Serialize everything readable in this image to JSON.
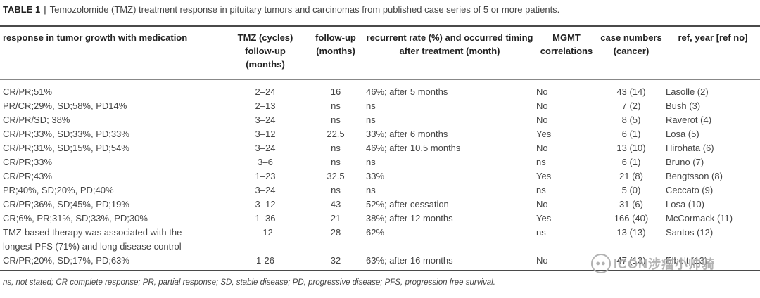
{
  "caption": {
    "label": "TABLE 1",
    "separator": "|",
    "text": "Temozolomide (TMZ) treatment response in pituitary tumors and carcinomas from published case series of 5 or more patients."
  },
  "headers": {
    "response": "response in tumor growth with medication",
    "tmz": "TMZ (cycles) follow-up (months)",
    "followup": "follow-up (months)",
    "recurrent": "recurrent rate (%) and occurred timing after treatment (month)",
    "mgmt": "MGMT correlations",
    "cases": "case numbers (cancer)",
    "ref": "ref, year [ref no]"
  },
  "rows": [
    {
      "response": "CR/PR;51%",
      "tmz": "2–24",
      "followup": "16",
      "recurrent": "46%; after 5 months",
      "mgmt": "No",
      "cases": "43 (14)",
      "ref": "Lasolle (2)"
    },
    {
      "response": "PR/CR;29%, SD;58%, PD14%",
      "tmz": "2–13",
      "followup": "ns",
      "recurrent": "ns",
      "mgmt": "No",
      "cases": "7 (2)",
      "ref": "Bush (3)"
    },
    {
      "response": "CR/PR/SD; 38%",
      "tmz": "3–24",
      "followup": "ns",
      "recurrent": "ns",
      "mgmt": "No",
      "cases": "8 (5)",
      "ref": "Raverot (4)"
    },
    {
      "response": "CR/PR;33%, SD;33%, PD;33%",
      "tmz": "3–12",
      "followup": "22.5",
      "recurrent": "33%; after 6 months",
      "mgmt": "Yes",
      "cases": "6 (1)",
      "ref": "Losa (5)"
    },
    {
      "response": "CR/PR;31%, SD;15%, PD;54%",
      "tmz": "3–24",
      "followup": "ns",
      "recurrent": "46%; after 10.5 months",
      "mgmt": "No",
      "cases": "13 (10)",
      "ref": "Hirohata (6)"
    },
    {
      "response": "CR/PR;33%",
      "tmz": "3–6",
      "followup": "ns",
      "recurrent": "ns",
      "mgmt": "ns",
      "cases": "6 (1)",
      "ref": "Bruno (7)"
    },
    {
      "response": "CR/PR;43%",
      "tmz": "1–23",
      "followup": "32.5",
      "recurrent": "33%",
      "mgmt": "Yes",
      "cases": "21 (8)",
      "ref": "Bengtsson (8)"
    },
    {
      "response": "PR;40%, SD;20%, PD;40%",
      "tmz": "3–24",
      "followup": "ns",
      "recurrent": "ns",
      "mgmt": "ns",
      "cases": "5 (0)",
      "ref": "Ceccato (9)"
    },
    {
      "response": "CR/PR;36%, SD;45%, PD;19%",
      "tmz": "3–12",
      "followup": "43",
      "recurrent": "52%; after cessation",
      "mgmt": "No",
      "cases": "31 (6)",
      "ref": "Losa (10)"
    },
    {
      "response": "CR;6%, PR;31%, SD;33%, PD;30%",
      "tmz": "1–36",
      "followup": "21",
      "recurrent": "38%; after 12 months",
      "mgmt": "Yes",
      "cases": "166 (40)",
      "ref": "McCormack (11)"
    },
    {
      "response": "TMZ-based therapy was associated with the longest PFS (71%) and long disease control",
      "response_line1": "TMZ-based therapy was associated with the",
      "response_line2": "longest PFS (71%) and long disease control",
      "tmz": "–12",
      "followup": "28",
      "recurrent": "62%",
      "mgmt": "ns",
      "cases": "13 (13)",
      "ref": "Santos (12)"
    },
    {
      "response": "CR/PR;20%, SD;17%, PD;63%",
      "tmz": "1-26",
      "followup": "32",
      "recurrent": "63%; after 16 months",
      "mgmt": "No",
      "cases": "47 (13)",
      "ref": "Elbelt (13)"
    }
  ],
  "footnote": "ns, not stated; CR complete response; PR, partial response; SD, stable disease; PD, progressive disease; PFS, progression free survival.",
  "watermark": "ICON涉瘤小帅骑"
}
